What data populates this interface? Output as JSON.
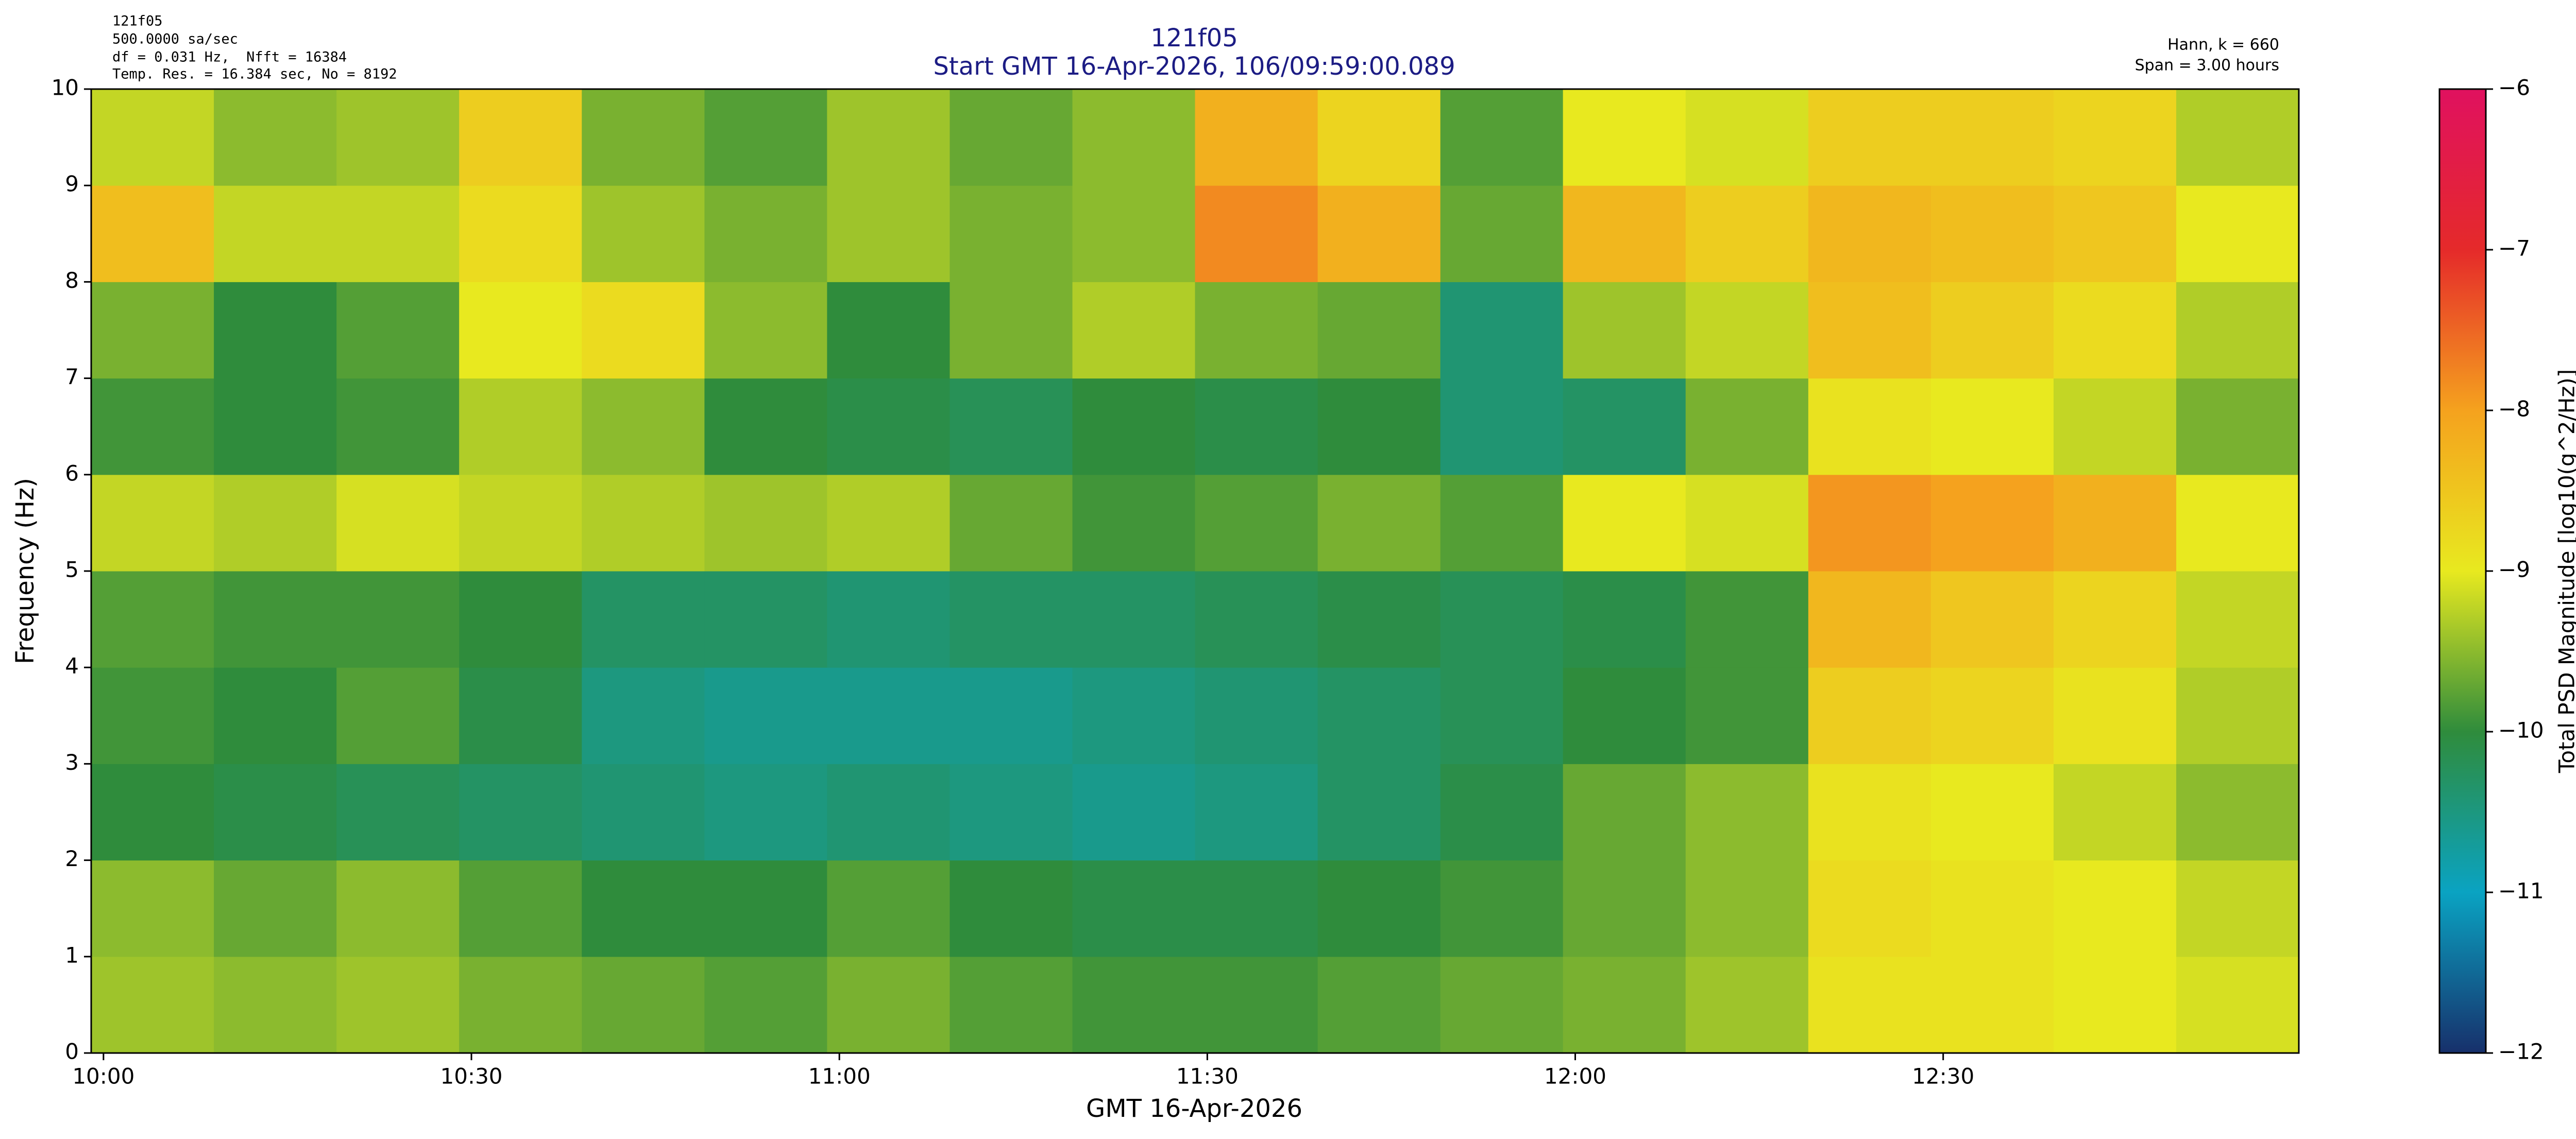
{
  "chart_data": {
    "type": "spectrogram",
    "title": [
      "121f05",
      "Start GMT 16-Apr-2026, 106/09:59:00.089"
    ],
    "info_left": [
      "121f05",
      "500.0000 sa/sec",
      "df = 0.031 Hz,  Nfft = 16384",
      "Temp. Res. = 16.384 sec, No = 8192"
    ],
    "info_right": [
      "Hann, k = 660",
      "Span = 3.00 hours"
    ],
    "x_label": "GMT 16-Apr-2026",
    "y_label": "Frequency (Hz)",
    "colorbar_label": "Total PSD Magnitude [log10(g^2/Hz)]",
    "xlim": [
      9.9833,
      12.9833
    ],
    "xticks": [
      {
        "value": 10,
        "label": "10:00"
      },
      {
        "value": 10.5,
        "label": "10:30"
      },
      {
        "value": 11,
        "label": "11:00"
      },
      {
        "value": 11.5,
        "label": "11:30"
      },
      {
        "value": 12,
        "label": "12:00"
      },
      {
        "value": 12.5,
        "label": "12:30"
      }
    ],
    "ylim": [
      0,
      10
    ],
    "yticks": [
      0,
      1,
      2,
      3,
      4,
      5,
      6,
      7,
      8,
      9,
      10
    ],
    "xbins": [
      9.9833,
      10.15,
      10.3167,
      10.4833,
      10.65,
      10.8167,
      10.9833,
      11.15,
      11.3167,
      11.4833,
      11.65,
      11.8167,
      11.9833,
      12.15,
      12.3167,
      12.4833,
      12.65,
      12.8167,
      12.9833
    ],
    "ybins": [
      0,
      1,
      2,
      3,
      4,
      5,
      6,
      7,
      8,
      9,
      10
    ],
    "z": [
      [
        -9.4,
        -9.5,
        -9.4,
        -9.6,
        -9.7,
        -9.8,
        -9.6,
        -9.8,
        -9.9,
        -9.9,
        -9.8,
        -9.7,
        -9.6,
        -9.4,
        -8.9,
        -8.9,
        -9.0,
        -9.1
      ],
      [
        -9.5,
        -9.7,
        -9.5,
        -9.8,
        -10.0,
        -10.0,
        -9.8,
        -10.0,
        -10.1,
        -10.1,
        -10.0,
        -9.9,
        -9.7,
        -9.5,
        -8.8,
        -8.9,
        -9.0,
        -9.2
      ],
      [
        -10.0,
        -10.1,
        -10.2,
        -10.3,
        -10.4,
        -10.5,
        -10.4,
        -10.5,
        -10.6,
        -10.5,
        -10.3,
        -10.1,
        -9.7,
        -9.5,
        -8.9,
        -9.0,
        -9.2,
        -9.5
      ],
      [
        -9.9,
        -10.0,
        -9.8,
        -10.1,
        -10.5,
        -10.6,
        -10.6,
        -10.6,
        -10.5,
        -10.4,
        -10.3,
        -10.2,
        -10.0,
        -9.9,
        -8.6,
        -8.7,
        -8.9,
        -9.3
      ],
      [
        -9.8,
        -9.9,
        -9.9,
        -10.0,
        -10.3,
        -10.3,
        -10.4,
        -10.3,
        -10.3,
        -10.2,
        -10.1,
        -10.2,
        -10.1,
        -9.9,
        -8.3,
        -8.5,
        -8.7,
        -9.2
      ],
      [
        -9.2,
        -9.3,
        -9.1,
        -9.2,
        -9.3,
        -9.4,
        -9.3,
        -9.7,
        -9.9,
        -9.8,
        -9.6,
        -9.8,
        -9.0,
        -9.1,
        -7.9,
        -8.0,
        -8.2,
        -9.0
      ],
      [
        -9.9,
        -10.0,
        -9.9,
        -9.3,
        -9.5,
        -10.0,
        -10.1,
        -10.2,
        -10.0,
        -10.1,
        -10.0,
        -10.4,
        -10.3,
        -9.6,
        -8.9,
        -9.0,
        -9.2,
        -9.6
      ],
      [
        -9.6,
        -10.0,
        -9.8,
        -9.0,
        -8.8,
        -9.5,
        -10.0,
        -9.6,
        -9.3,
        -9.6,
        -9.7,
        -10.4,
        -9.4,
        -9.2,
        -8.4,
        -8.6,
        -8.8,
        -9.3
      ],
      [
        -8.4,
        -9.2,
        -9.2,
        -8.8,
        -9.4,
        -9.6,
        -9.4,
        -9.6,
        -9.5,
        -7.8,
        -8.2,
        -9.7,
        -8.3,
        -8.6,
        -8.3,
        -8.4,
        -8.5,
        -9.0
      ],
      [
        -9.2,
        -9.5,
        -9.4,
        -8.6,
        -9.6,
        -9.8,
        -9.4,
        -9.7,
        -9.5,
        -8.2,
        -8.7,
        -9.8,
        -9.0,
        -9.1,
        -8.6,
        -8.6,
        -8.7,
        -9.3
      ]
    ],
    "clim": [
      -12,
      -6
    ],
    "cticks": [
      {
        "value": -12,
        "label": "−12"
      },
      {
        "value": -11,
        "label": "−11"
      },
      {
        "value": -10,
        "label": "−10"
      },
      {
        "value": -9,
        "label": "−9"
      },
      {
        "value": -8,
        "label": "−8"
      },
      {
        "value": -7,
        "label": "−7"
      },
      {
        "value": -6,
        "label": "−6"
      }
    ],
    "colors": [
      "#17306b",
      "#0aa3c2",
      "#2f8c3c",
      "#e8e91f",
      "#f5a21e",
      "#e52a2a",
      "#e0115f"
    ],
    "title_color": "#1c1c84"
  }
}
